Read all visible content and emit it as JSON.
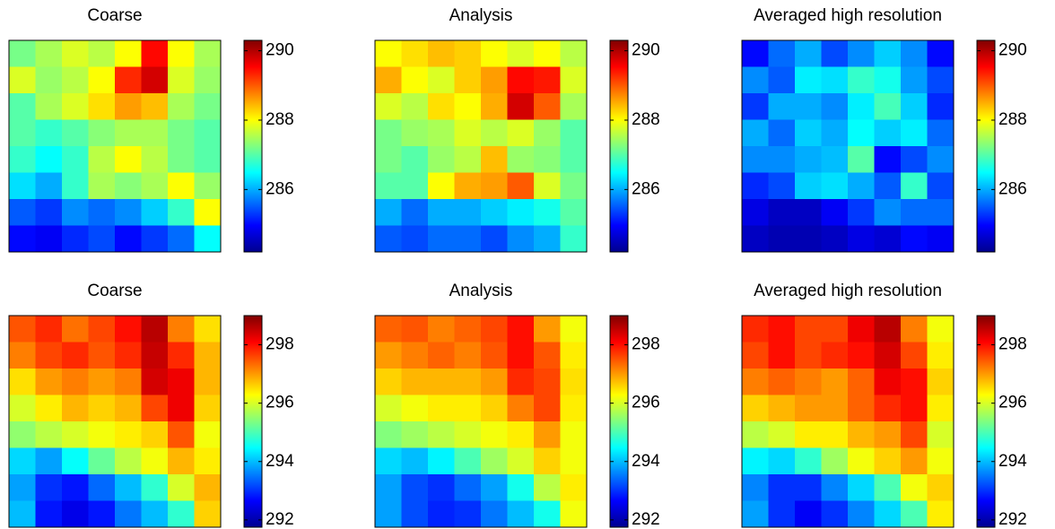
{
  "chart_data": [
    {
      "type": "heatmap",
      "title": "Coarse",
      "colormap": "jet",
      "zlim": [
        284.2,
        290.3
      ],
      "zticks": [
        286,
        288,
        290
      ],
      "z": [
        [
          287.2,
          287.5,
          287.8,
          287.6,
          288.0,
          289.5,
          288.0,
          287.5
        ],
        [
          287.8,
          287.4,
          287.6,
          288.0,
          289.3,
          289.8,
          287.8,
          287.4
        ],
        [
          287.0,
          287.5,
          287.8,
          288.2,
          288.6,
          288.4,
          287.5,
          287.2
        ],
        [
          287.0,
          286.8,
          287.0,
          287.3,
          287.5,
          287.5,
          287.2,
          287.0
        ],
        [
          286.8,
          286.5,
          286.8,
          287.6,
          288.0,
          287.6,
          287.2,
          287.0
        ],
        [
          286.3,
          286.0,
          286.8,
          287.5,
          287.3,
          287.5,
          288.0,
          287.4
        ],
        [
          285.5,
          285.3,
          285.8,
          285.6,
          285.8,
          286.2,
          286.8,
          288.0
        ],
        [
          285.0,
          284.9,
          285.2,
          285.4,
          285.0,
          285.3,
          285.6,
          286.5
        ]
      ]
    },
    {
      "type": "heatmap",
      "title": "Analysis",
      "colormap": "jet",
      "zlim": [
        284.2,
        290.3
      ],
      "zticks": [
        286,
        288,
        290
      ],
      "z": [
        [
          288.0,
          288.2,
          288.4,
          288.3,
          288.0,
          287.8,
          288.0,
          287.6
        ],
        [
          288.5,
          288.0,
          287.8,
          288.3,
          288.6,
          289.5,
          289.4,
          287.8
        ],
        [
          287.8,
          287.6,
          288.2,
          288.0,
          288.5,
          289.8,
          289.0,
          287.5
        ],
        [
          287.2,
          287.4,
          287.5,
          287.8,
          287.6,
          287.8,
          287.4,
          287.0
        ],
        [
          287.2,
          287.0,
          287.4,
          287.6,
          288.4,
          287.4,
          287.3,
          287.0
        ],
        [
          287.0,
          287.0,
          288.0,
          288.5,
          288.6,
          289.0,
          287.8,
          287.2
        ],
        [
          286.0,
          285.6,
          286.0,
          286.0,
          286.2,
          286.4,
          286.6,
          287.0
        ],
        [
          285.5,
          285.4,
          285.6,
          285.6,
          285.4,
          285.8,
          286.0,
          286.8
        ]
      ]
    },
    {
      "type": "heatmap",
      "title": "Averaged high resolution",
      "colormap": "jet",
      "zlim": [
        284.2,
        290.3
      ],
      "zticks": [
        286,
        288,
        290
      ],
      "z": [
        [
          285.0,
          285.6,
          286.0,
          285.4,
          285.8,
          286.2,
          285.8,
          285.0
        ],
        [
          285.8,
          285.5,
          286.4,
          286.3,
          286.8,
          286.6,
          285.9,
          285.4
        ],
        [
          285.3,
          286.0,
          286.0,
          285.8,
          286.4,
          286.9,
          286.2,
          285.2
        ],
        [
          286.0,
          285.6,
          286.2,
          286.0,
          286.5,
          286.2,
          286.4,
          285.6
        ],
        [
          285.8,
          285.8,
          286.0,
          286.1,
          287.0,
          285.0,
          285.4,
          285.8
        ],
        [
          285.2,
          285.4,
          286.2,
          286.3,
          286.0,
          285.5,
          286.8,
          285.4
        ],
        [
          284.8,
          284.6,
          284.6,
          284.9,
          285.3,
          285.8,
          285.6,
          285.6
        ],
        [
          284.6,
          284.5,
          284.5,
          284.6,
          284.8,
          284.7,
          285.0,
          284.9
        ]
      ]
    },
    {
      "type": "heatmap",
      "title": "Coarse",
      "colormap": "jet",
      "zlim": [
        291.75,
        299
      ],
      "zticks": [
        292,
        294,
        296,
        298
      ],
      "z": [
        [
          297.5,
          297.8,
          297.3,
          297.6,
          298.0,
          298.6,
          297.2,
          296.5
        ],
        [
          297.2,
          297.6,
          297.8,
          297.5,
          297.8,
          298.5,
          297.8,
          296.8
        ],
        [
          296.5,
          297.0,
          297.2,
          297.0,
          297.2,
          298.4,
          298.2,
          296.8
        ],
        [
          296.0,
          296.4,
          296.8,
          296.6,
          296.8,
          297.6,
          298.2,
          296.6
        ],
        [
          295.5,
          295.8,
          296.0,
          296.2,
          296.4,
          296.6,
          297.5,
          296.2
        ],
        [
          294.2,
          293.8,
          294.5,
          295.2,
          295.8,
          296.2,
          296.8,
          296.4
        ],
        [
          293.8,
          293.0,
          292.8,
          293.4,
          294.0,
          294.8,
          296.0,
          296.8
        ],
        [
          294.0,
          292.8,
          292.5,
          292.8,
          293.5,
          294.0,
          294.8,
          296.6
        ]
      ]
    },
    {
      "type": "heatmap",
      "title": "Analysis",
      "colormap": "jet",
      "zlim": [
        291.75,
        299
      ],
      "zticks": [
        292,
        294,
        296,
        298
      ],
      "z": [
        [
          297.4,
          297.5,
          297.2,
          297.4,
          297.6,
          298.0,
          297.0,
          296.2
        ],
        [
          297.0,
          297.2,
          297.4,
          297.2,
          297.5,
          298.0,
          297.5,
          296.4
        ],
        [
          296.6,
          296.8,
          296.8,
          296.8,
          297.0,
          297.8,
          297.6,
          296.5
        ],
        [
          296.0,
          296.2,
          296.4,
          296.4,
          296.6,
          297.2,
          297.6,
          296.4
        ],
        [
          295.4,
          295.6,
          295.8,
          296.0,
          296.2,
          296.4,
          297.0,
          296.2
        ],
        [
          294.2,
          294.0,
          294.4,
          295.0,
          295.6,
          296.0,
          296.6,
          296.2
        ],
        [
          293.8,
          293.2,
          293.0,
          293.4,
          293.8,
          294.6,
          295.8,
          296.4
        ],
        [
          293.8,
          293.2,
          292.9,
          293.0,
          293.5,
          294.0,
          294.6,
          296.2
        ]
      ]
    },
    {
      "type": "heatmap",
      "title": "Averaged high resolution",
      "colormap": "jet",
      "zlim": [
        291.75,
        299
      ],
      "zticks": [
        292,
        294,
        296,
        298
      ],
      "z": [
        [
          297.8,
          298.0,
          297.6,
          297.6,
          298.2,
          298.6,
          297.2,
          296.2
        ],
        [
          297.6,
          298.0,
          297.6,
          297.8,
          298.0,
          298.4,
          297.6,
          296.4
        ],
        [
          297.2,
          297.4,
          297.2,
          297.0,
          297.4,
          298.2,
          298.0,
          296.6
        ],
        [
          296.6,
          296.8,
          297.0,
          297.0,
          297.4,
          297.8,
          298.0,
          296.4
        ],
        [
          295.8,
          296.0,
          296.4,
          296.4,
          296.8,
          297.0,
          297.6,
          296.0
        ],
        [
          294.4,
          294.2,
          294.8,
          295.6,
          296.2,
          296.6,
          297.0,
          296.2
        ],
        [
          293.6,
          293.0,
          293.0,
          293.6,
          294.2,
          295.0,
          296.2,
          296.6
        ],
        [
          293.8,
          293.0,
          292.6,
          293.0,
          293.6,
          294.2,
          295.0,
          296.4
        ]
      ]
    }
  ]
}
